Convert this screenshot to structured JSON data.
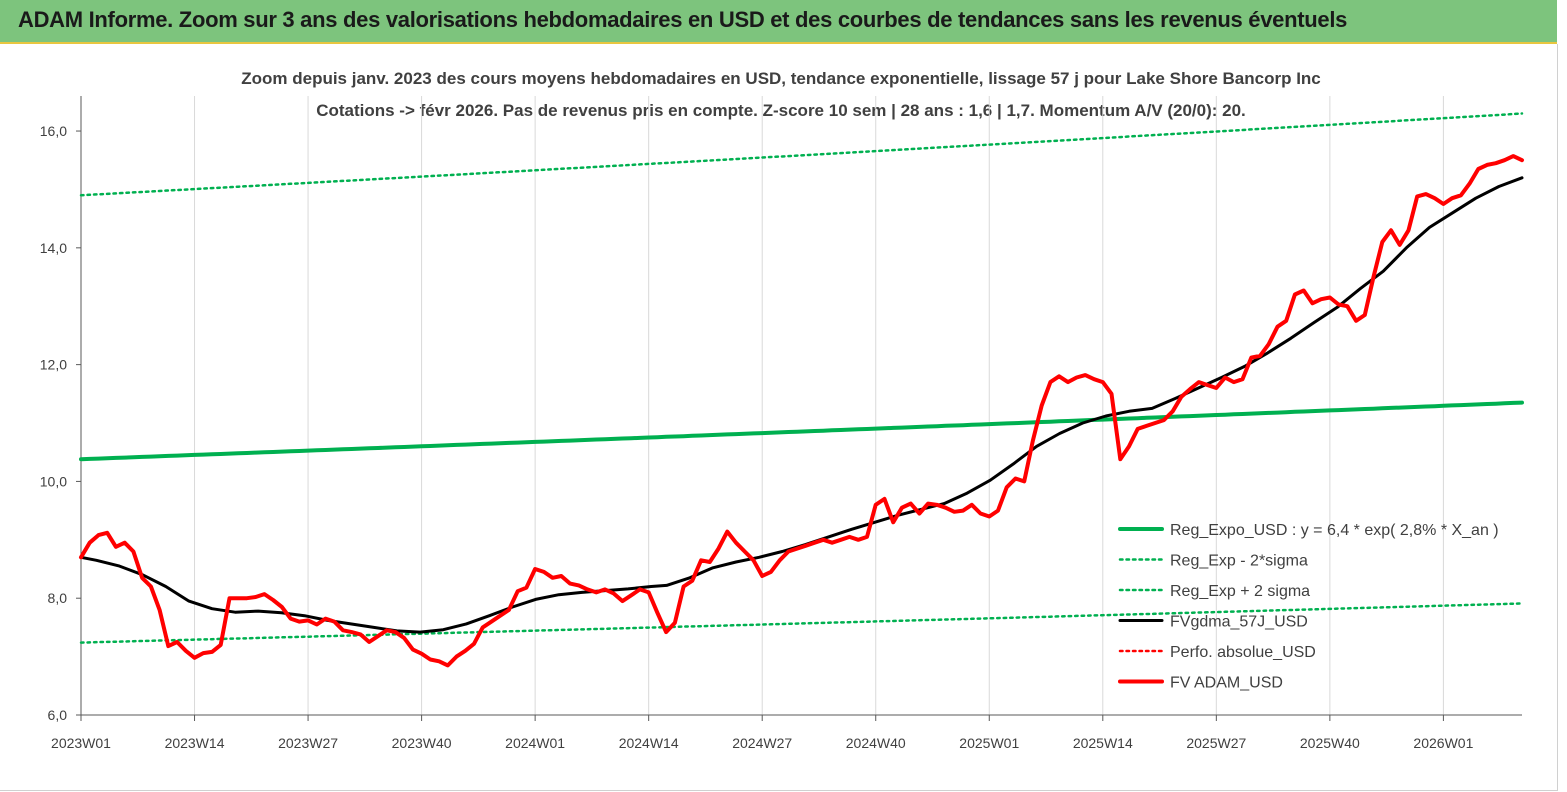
{
  "header": {
    "title": "ADAM Informe. Zoom sur 3 ans des valorisations hebdomadaires en USD et des courbes de tendances sans les revenus éventuels"
  },
  "chart_data": {
    "type": "line",
    "title_line1": "Zoom depuis janv. 2023 des cours moyens hebdomadaires en USD, tendance exponentielle, lissage 57 j pour Lake Shore Bancorp Inc",
    "title_line2": "Cotations -> févr 2026.  Pas de revenus pris en compte. Z-score 10 sem  | 28 ans : 1,6  | 1,7. Momentum A/V (20/0): 20.",
    "ylim": [
      6,
      16.6
    ],
    "y_ticks": [
      "6,0",
      "8,0",
      "10,0",
      "12,0",
      "14,0",
      "16,0"
    ],
    "y_tick_values": [
      6,
      8,
      10,
      12,
      14,
      16
    ],
    "x_ticks": [
      "2023W01",
      "2023W14",
      "2023W27",
      "2023W40",
      "2024W01",
      "2024W14",
      "2024W27",
      "2024W40",
      "2025W01",
      "2025W14",
      "2025W27",
      "2025W40",
      "2026W01"
    ],
    "x_tick_weeks": [
      0,
      13,
      26,
      39,
      52,
      65,
      78,
      91,
      104,
      117,
      130,
      143,
      156
    ],
    "week_count": 166,
    "grid": "vertical",
    "legend_position": "right",
    "series": [
      {
        "name": "Reg_Expo_USD : y = 6,4 * exp( 2,8% *  X_an )",
        "color": "#00b050",
        "style": "solid-thick",
        "endpoints": [
          [
            0,
            10.38
          ],
          [
            165,
            11.35
          ]
        ]
      },
      {
        "name": "Reg_Exp - 2*sigma",
        "color": "#00b050",
        "style": "dotted",
        "endpoints": [
          [
            0,
            7.24
          ],
          [
            165,
            7.91
          ]
        ]
      },
      {
        "name": "Reg_Exp + 2 sigma",
        "color": "#00b050",
        "style": "dotted",
        "endpoints": [
          [
            0,
            14.9
          ],
          [
            165,
            16.3
          ]
        ]
      },
      {
        "name": "FVgdma_57J_USD",
        "color": "#000000",
        "style": "solid",
        "points": [
          [
            0,
            8.7
          ],
          [
            2,
            8.65
          ],
          [
            5,
            8.55
          ],
          [
            8,
            8.4
          ],
          [
            11,
            8.2
          ],
          [
            14,
            7.95
          ],
          [
            17,
            7.82
          ],
          [
            20,
            7.76
          ],
          [
            23,
            7.78
          ],
          [
            26,
            7.75
          ],
          [
            29,
            7.7
          ],
          [
            32,
            7.62
          ],
          [
            35,
            7.56
          ],
          [
            38,
            7.5
          ],
          [
            41,
            7.44
          ],
          [
            44,
            7.42
          ],
          [
            47,
            7.46
          ],
          [
            50,
            7.56
          ],
          [
            53,
            7.7
          ],
          [
            56,
            7.85
          ],
          [
            59,
            7.98
          ],
          [
            62,
            8.06
          ],
          [
            65,
            8.1
          ],
          [
            68,
            8.13
          ],
          [
            71,
            8.16
          ],
          [
            74,
            8.2
          ],
          [
            76,
            8.22
          ],
          [
            79,
            8.35
          ],
          [
            82,
            8.52
          ],
          [
            85,
            8.62
          ],
          [
            88,
            8.7
          ],
          [
            91,
            8.8
          ],
          [
            94,
            8.92
          ],
          [
            97,
            9.05
          ],
          [
            100,
            9.18
          ],
          [
            103,
            9.3
          ],
          [
            106,
            9.42
          ],
          [
            109,
            9.52
          ],
          [
            112,
            9.62
          ],
          [
            115,
            9.8
          ],
          [
            118,
            10.02
          ],
          [
            121,
            10.3
          ],
          [
            124,
            10.6
          ],
          [
            127,
            10.82
          ],
          [
            130,
            11.0
          ],
          [
            133,
            11.12
          ],
          [
            136,
            11.2
          ],
          [
            139,
            11.25
          ],
          [
            142,
            11.42
          ],
          [
            145,
            11.6
          ],
          [
            148,
            11.78
          ],
          [
            151,
            11.97
          ],
          [
            154,
            12.2
          ],
          [
            157,
            12.45
          ],
          [
            160,
            12.72
          ],
          [
            163,
            12.98
          ],
          [
            166,
            13.3
          ],
          [
            169,
            13.6
          ],
          [
            172,
            14.0
          ],
          [
            175,
            14.35
          ],
          [
            178,
            14.6
          ],
          [
            181,
            14.85
          ],
          [
            184,
            15.05
          ],
          [
            187,
            15.2
          ]
        ]
      },
      {
        "name": "Perfo. absolue_USD",
        "color": "#ff0000",
        "style": "dotted",
        "points": []
      },
      {
        "name": "FV ADAM_USD",
        "color": "#ff0000",
        "style": "solid-thick",
        "points": [
          [
            0,
            8.7
          ],
          [
            1,
            8.95
          ],
          [
            2,
            9.08
          ],
          [
            3,
            9.12
          ],
          [
            4,
            8.88
          ],
          [
            5,
            8.95
          ],
          [
            6,
            8.8
          ],
          [
            7,
            8.35
          ],
          [
            8,
            8.2
          ],
          [
            9,
            7.8
          ],
          [
            10,
            7.18
          ],
          [
            11,
            7.25
          ],
          [
            12,
            7.1
          ],
          [
            13,
            6.98
          ],
          [
            14,
            7.06
          ],
          [
            15,
            7.08
          ],
          [
            16,
            7.2
          ],
          [
            17,
            8.0
          ],
          [
            18,
            8.0
          ],
          [
            19,
            8.0
          ],
          [
            20,
            8.02
          ],
          [
            21,
            8.07
          ],
          [
            22,
            7.97
          ],
          [
            23,
            7.85
          ],
          [
            24,
            7.65
          ],
          [
            25,
            7.6
          ],
          [
            26,
            7.62
          ],
          [
            27,
            7.55
          ],
          [
            28,
            7.65
          ],
          [
            29,
            7.6
          ],
          [
            30,
            7.45
          ],
          [
            31,
            7.42
          ],
          [
            32,
            7.38
          ],
          [
            33,
            7.25
          ],
          [
            34,
            7.35
          ],
          [
            35,
            7.45
          ],
          [
            36,
            7.42
          ],
          [
            37,
            7.32
          ],
          [
            38,
            7.12
          ],
          [
            39,
            7.05
          ],
          [
            40,
            6.95
          ],
          [
            41,
            6.92
          ],
          [
            42,
            6.85
          ],
          [
            43,
            7.0
          ],
          [
            44,
            7.1
          ],
          [
            45,
            7.22
          ],
          [
            46,
            7.5
          ],
          [
            47,
            7.6
          ],
          [
            48,
            7.7
          ],
          [
            49,
            7.8
          ],
          [
            50,
            8.12
          ],
          [
            51,
            8.18
          ],
          [
            52,
            8.5
          ],
          [
            53,
            8.45
          ],
          [
            54,
            8.35
          ],
          [
            55,
            8.38
          ],
          [
            56,
            8.25
          ],
          [
            57,
            8.22
          ],
          [
            58,
            8.15
          ],
          [
            59,
            8.1
          ],
          [
            60,
            8.15
          ],
          [
            61,
            8.08
          ],
          [
            62,
            7.95
          ],
          [
            63,
            8.05
          ],
          [
            64,
            8.15
          ],
          [
            65,
            8.1
          ],
          [
            66,
            7.75
          ],
          [
            67,
            7.42
          ],
          [
            68,
            7.58
          ],
          [
            69,
            8.2
          ],
          [
            70,
            8.3
          ],
          [
            71,
            8.65
          ],
          [
            72,
            8.62
          ],
          [
            73,
            8.85
          ],
          [
            74,
            9.14
          ],
          [
            75,
            8.95
          ],
          [
            76,
            8.8
          ],
          [
            77,
            8.65
          ],
          [
            78,
            8.38
          ],
          [
            79,
            8.45
          ],
          [
            80,
            8.65
          ],
          [
            81,
            8.8
          ],
          [
            82,
            8.85
          ],
          [
            83,
            8.9
          ],
          [
            84,
            8.95
          ],
          [
            85,
            9.0
          ],
          [
            86,
            8.95
          ],
          [
            87,
            9.0
          ],
          [
            88,
            9.05
          ],
          [
            89,
            9.0
          ],
          [
            90,
            9.05
          ],
          [
            91,
            9.6
          ],
          [
            92,
            9.7
          ],
          [
            93,
            9.3
          ],
          [
            94,
            9.55
          ],
          [
            95,
            9.62
          ],
          [
            96,
            9.45
          ],
          [
            97,
            9.62
          ],
          [
            98,
            9.6
          ],
          [
            99,
            9.55
          ],
          [
            100,
            9.48
          ],
          [
            101,
            9.5
          ],
          [
            102,
            9.6
          ],
          [
            103,
            9.45
          ],
          [
            104,
            9.4
          ],
          [
            105,
            9.5
          ],
          [
            106,
            9.9
          ],
          [
            107,
            10.05
          ],
          [
            108,
            10.0
          ],
          [
            109,
            10.7
          ],
          [
            110,
            11.3
          ],
          [
            111,
            11.7
          ],
          [
            112,
            11.8
          ],
          [
            113,
            11.7
          ],
          [
            114,
            11.78
          ],
          [
            115,
            11.82
          ],
          [
            116,
            11.75
          ],
          [
            117,
            11.7
          ],
          [
            118,
            11.5
          ],
          [
            119,
            10.38
          ],
          [
            120,
            10.6
          ],
          [
            121,
            10.9
          ],
          [
            122,
            10.95
          ],
          [
            123,
            11.0
          ],
          [
            124,
            11.05
          ],
          [
            125,
            11.2
          ],
          [
            126,
            11.45
          ],
          [
            127,
            11.58
          ],
          [
            128,
            11.7
          ],
          [
            129,
            11.65
          ],
          [
            130,
            11.6
          ],
          [
            131,
            11.78
          ],
          [
            132,
            11.7
          ],
          [
            133,
            11.75
          ],
          [
            134,
            12.12
          ],
          [
            135,
            12.15
          ],
          [
            136,
            12.35
          ],
          [
            137,
            12.65
          ],
          [
            138,
            12.75
          ],
          [
            139,
            13.2
          ],
          [
            140,
            13.27
          ],
          [
            141,
            13.05
          ],
          [
            142,
            13.12
          ],
          [
            143,
            13.15
          ],
          [
            144,
            13.03
          ],
          [
            145,
            13.0
          ],
          [
            146,
            12.75
          ],
          [
            147,
            12.85
          ],
          [
            148,
            13.5
          ],
          [
            149,
            14.1
          ],
          [
            150,
            14.3
          ],
          [
            151,
            14.05
          ],
          [
            152,
            14.3
          ],
          [
            153,
            14.88
          ],
          [
            154,
            14.92
          ],
          [
            155,
            14.85
          ],
          [
            156,
            14.75
          ],
          [
            157,
            14.85
          ],
          [
            158,
            14.9
          ],
          [
            159,
            15.1
          ],
          [
            160,
            15.35
          ],
          [
            161,
            15.42
          ],
          [
            162,
            15.45
          ],
          [
            163,
            15.5
          ],
          [
            164,
            15.57
          ],
          [
            165,
            15.5
          ]
        ]
      }
    ]
  }
}
